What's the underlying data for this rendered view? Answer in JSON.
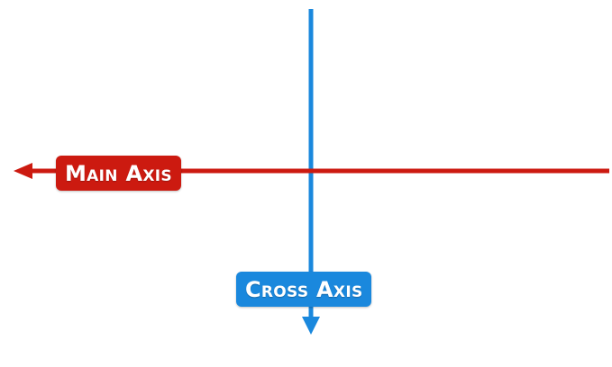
{
  "diagram": {
    "main_axis": {
      "label": "Main Axis",
      "color": "#cc1a10",
      "direction": "right-to-left"
    },
    "cross_axis": {
      "label": "Cross Axis",
      "color": "#1a88dd",
      "direction": "top-to-bottom"
    }
  }
}
